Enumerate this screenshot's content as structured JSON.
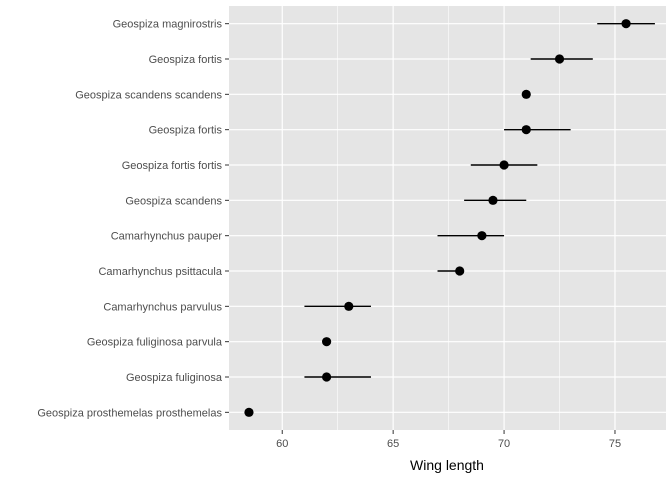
{
  "chart_data": {
    "type": "scatter",
    "title": "",
    "xlabel": "Wing length",
    "ylabel": "",
    "xlim": [
      57.6,
      77.3
    ],
    "x_ticks": [
      60,
      65,
      70,
      75
    ],
    "grid": true,
    "colors": {
      "panel": "#e5e5e5",
      "grid": "#ffffff",
      "point": "#000000",
      "text": "#4d4d4d"
    },
    "points": [
      {
        "label": "Geospiza magnirostris",
        "x": 75.5,
        "low": 74.2,
        "high": 76.8
      },
      {
        "label": "Geospiza fortis",
        "x": 72.5,
        "low": 71.2,
        "high": 74.0
      },
      {
        "label": "Geospiza scandens scandens",
        "x": 71.0,
        "low": 71.0,
        "high": 71.0
      },
      {
        "label": "Geospiza fortis",
        "x": 71.0,
        "low": 70.0,
        "high": 73.0
      },
      {
        "label": "Geospiza fortis fortis",
        "x": 70.0,
        "low": 68.5,
        "high": 71.5
      },
      {
        "label": "Geospiza scandens",
        "x": 69.5,
        "low": 68.2,
        "high": 71.0
      },
      {
        "label": "Camarhynchus pauper",
        "x": 69.0,
        "low": 67.0,
        "high": 70.0
      },
      {
        "label": "Camarhynchus psittacula",
        "x": 68.0,
        "low": 67.0,
        "high": 68.0
      },
      {
        "label": "Camarhynchus parvulus",
        "x": 63.0,
        "low": 61.0,
        "high": 64.0
      },
      {
        "label": "Geospiza fuliginosa parvula",
        "x": 62.0,
        "low": 62.0,
        "high": 62.0
      },
      {
        "label": "Geospiza fuliginosa",
        "x": 62.0,
        "low": 61.0,
        "high": 64.0
      },
      {
        "label": "Geospiza prosthemelas prosthemelas",
        "x": 58.5,
        "low": 58.5,
        "high": 58.5
      }
    ]
  }
}
